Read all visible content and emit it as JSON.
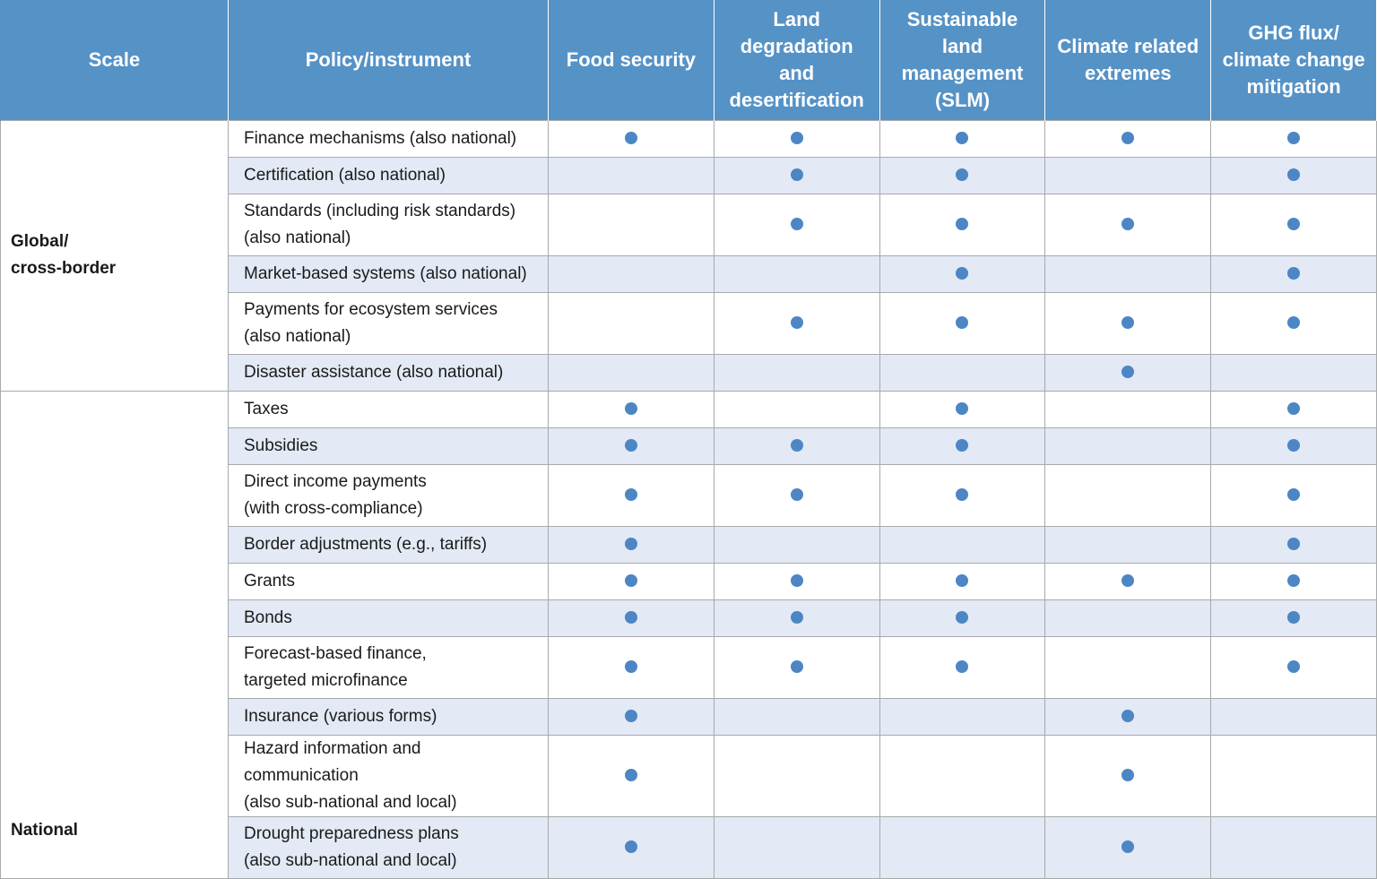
{
  "headers": [
    "Scale",
    "Policy/instrument",
    "Food security",
    "Land\ndegradation\nand\ndesertification",
    "Sustainable\nland\nmanagement\n(SLM)",
    "Climate related\nextremes",
    "GHG flux/\nclimate change\nmitigation"
  ],
  "marker": "filled-circle-dot",
  "colors": {
    "header_bg": "#5592c6",
    "header_text": "#ffffff",
    "shaded_row": "#e3e9f5",
    "dot": "#4d86c4",
    "grid": "#a7a9ac"
  },
  "groups": [
    {
      "scale": "Global/\ncross-border",
      "rows": [
        {
          "label": "Finance mechanisms (also national)",
          "marks": [
            true,
            true,
            true,
            true,
            true
          ]
        },
        {
          "label": "Certification (also national)",
          "marks": [
            false,
            true,
            true,
            false,
            true
          ]
        },
        {
          "label": "Standards (including risk standards)\n(also national)",
          "marks": [
            false,
            true,
            true,
            true,
            true
          ]
        },
        {
          "label": "Market-based systems (also national)",
          "marks": [
            false,
            false,
            true,
            false,
            true
          ]
        },
        {
          "label": "Payments for ecosystem services\n(also national)",
          "marks": [
            false,
            true,
            true,
            true,
            true
          ]
        },
        {
          "label": "Disaster assistance (also national)",
          "marks": [
            false,
            false,
            false,
            true,
            false
          ]
        }
      ]
    },
    {
      "scale": "National",
      "rows": [
        {
          "label": "Taxes",
          "marks": [
            true,
            false,
            true,
            false,
            true
          ]
        },
        {
          "label": "Subsidies",
          "marks": [
            true,
            true,
            true,
            false,
            true
          ]
        },
        {
          "label": "Direct income payments\n(with cross-compliance)",
          "marks": [
            true,
            true,
            true,
            false,
            true
          ]
        },
        {
          "label": "Border adjustments (e.g., tariffs)",
          "marks": [
            true,
            false,
            false,
            false,
            true
          ]
        },
        {
          "label": "Grants",
          "marks": [
            true,
            true,
            true,
            true,
            true
          ]
        },
        {
          "label": "Bonds",
          "marks": [
            true,
            true,
            true,
            false,
            true
          ]
        },
        {
          "label": "Forecast-based finance,\ntargeted microfinance",
          "marks": [
            true,
            true,
            true,
            false,
            true
          ]
        },
        {
          "label": "Insurance (various forms)",
          "marks": [
            true,
            false,
            false,
            true,
            false
          ]
        },
        {
          "label": "Hazard information and communication\n(also sub-national and local)",
          "marks": [
            true,
            false,
            false,
            true,
            false
          ]
        },
        {
          "label": "Drought preparedness plans\n(also sub-national and local)",
          "marks": [
            true,
            false,
            false,
            true,
            false
          ]
        }
      ]
    }
  ]
}
